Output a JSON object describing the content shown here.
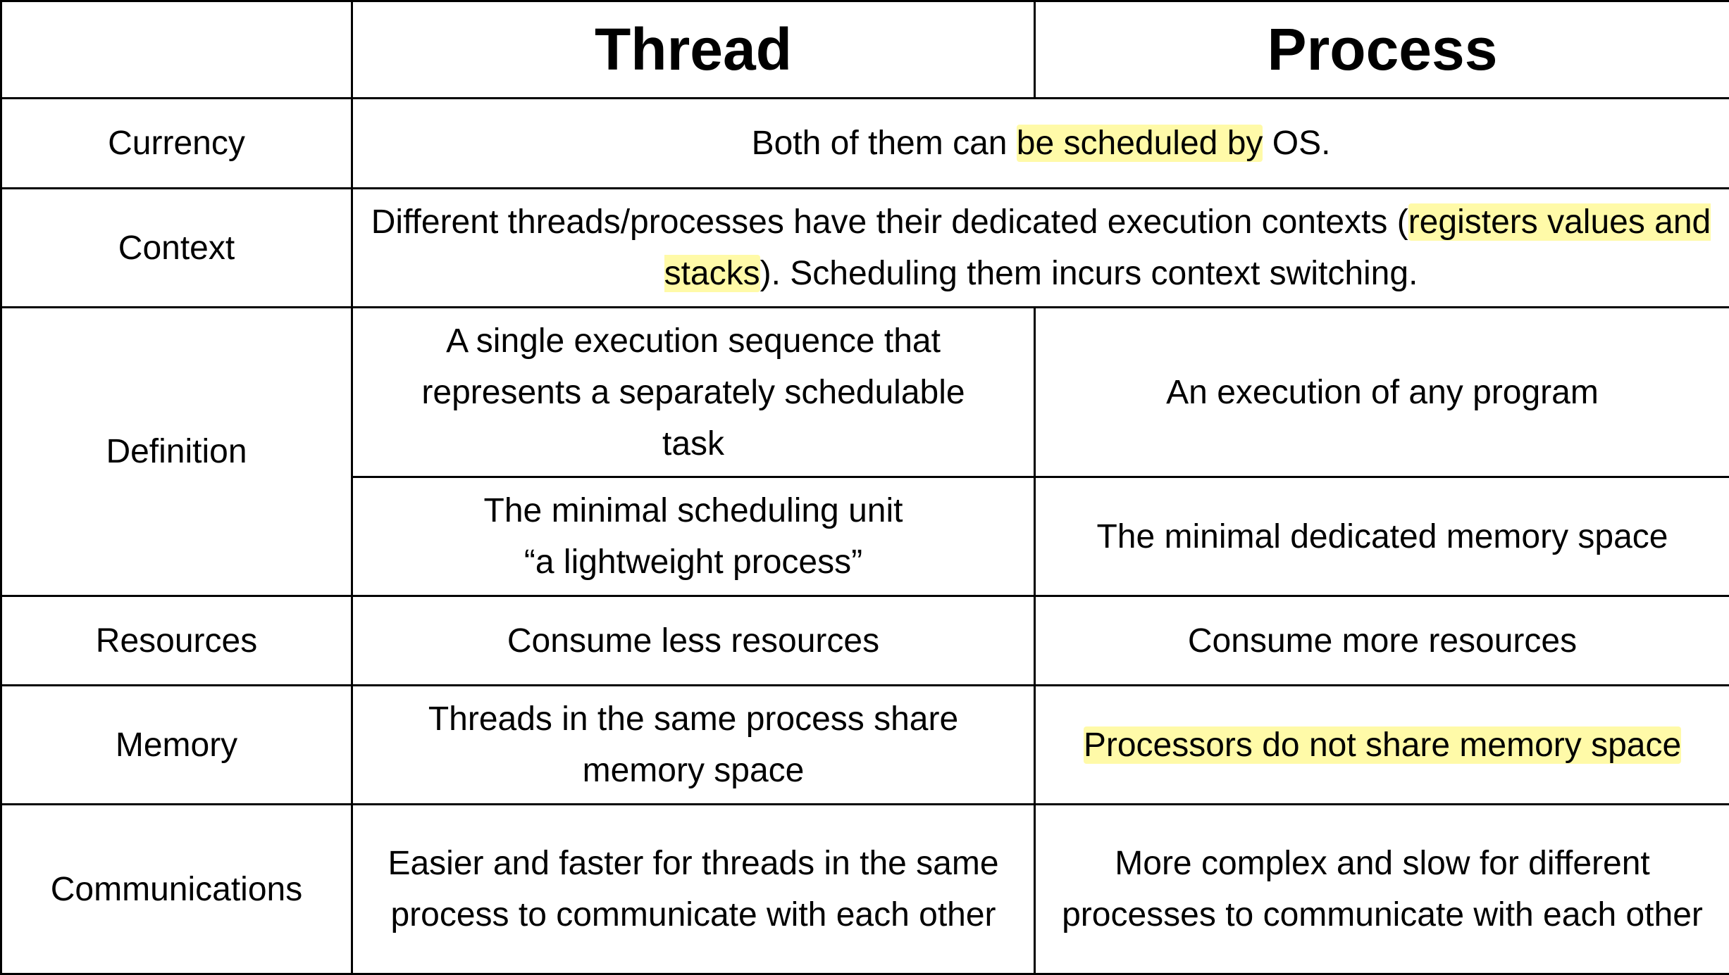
{
  "header": {
    "corner": "",
    "thread": "Thread",
    "process": "Process"
  },
  "highlight_color": "#fffaa8",
  "rows": {
    "currency": {
      "label": "Currency",
      "pre": "Both of them can ",
      "hl": "be scheduled by",
      "post": " OS."
    },
    "context": {
      "label": "Context",
      "pre": "Different threads/processes have their dedicated execution contexts (",
      "hl": "registers values and stacks",
      "post": "). Scheduling them incurs context switching."
    },
    "definition": {
      "label": "Definition",
      "thread1": "A single execution sequence that represents a separately schedulable task",
      "process1": "An execution of any program",
      "thread2a": "The minimal scheduling unit",
      "thread2b": "“a lightweight process”",
      "process2": "The minimal dedicated memory space"
    },
    "resources": {
      "label": "Resources",
      "thread": "Consume less resources",
      "process": "Consume more resources"
    },
    "memory": {
      "label": "Memory",
      "thread": "Threads in the same process share memory space",
      "process_hl": "Processors do not share memory space"
    },
    "communications": {
      "label": "Communications",
      "thread": "Easier and faster for threads in the same process to communicate with each other",
      "process": "More complex and slow for different processes to communicate with each other"
    }
  }
}
